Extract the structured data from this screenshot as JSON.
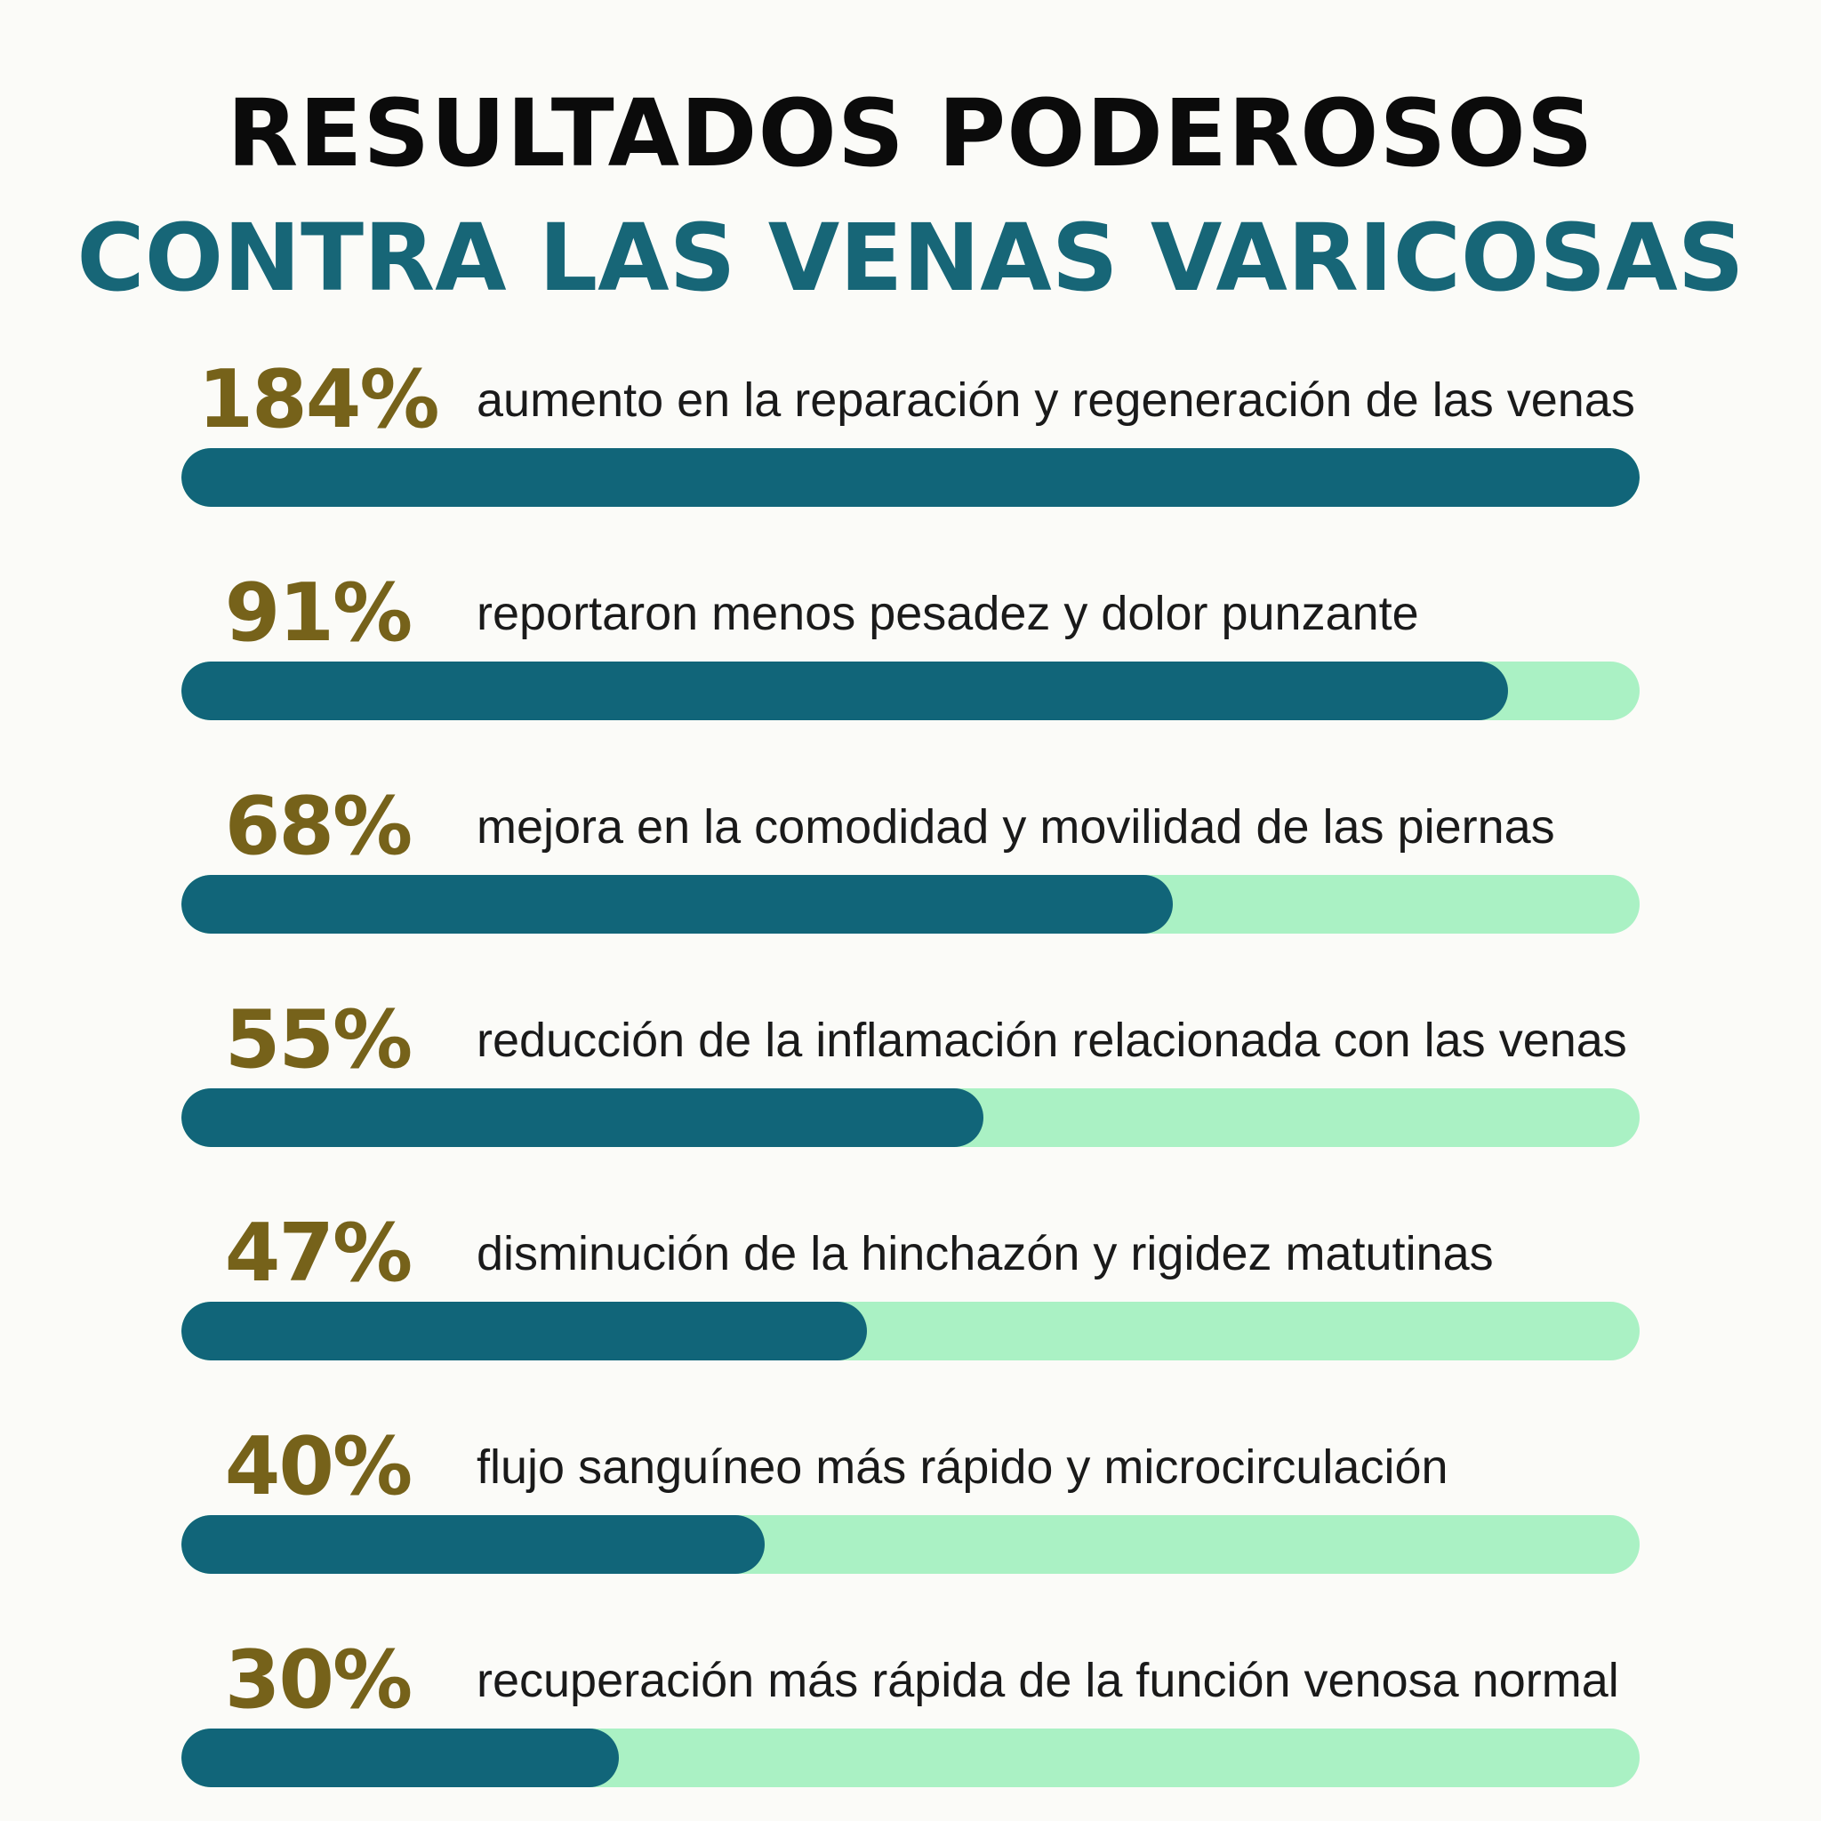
{
  "colors": {
    "background": "#fbfbf8",
    "title_dark": "#0b0b0b",
    "title_teal": "#176677",
    "percent_text": "#76621a",
    "bar_fill": "#116579",
    "bar_track": "#aaf1c4"
  },
  "chart_data": {
    "type": "bar",
    "orientation": "horizontal",
    "title_line1": "RESULTADOS PODEROSOS",
    "title_line2": "CONTRA LAS VENAS VARICOSAS",
    "items": [
      {
        "value_label": "184%",
        "value": 184,
        "fill_fraction": 1.0,
        "description": "aumento en la reparación y regeneración de las venas"
      },
      {
        "value_label": "91%",
        "value": 91,
        "fill_fraction": 0.91,
        "description": "reportaron menos pesadez y dolor punzante"
      },
      {
        "value_label": "68%",
        "value": 68,
        "fill_fraction": 0.68,
        "description": "mejora en la comodidad y movilidad de las piernas"
      },
      {
        "value_label": "55%",
        "value": 55,
        "fill_fraction": 0.55,
        "description": "reducción de la inflamación relacionada con las venas"
      },
      {
        "value_label": "47%",
        "value": 47,
        "fill_fraction": 0.47,
        "description": "disminución de la hinchazón y rigidez matutinas"
      },
      {
        "value_label": "40%",
        "value": 40,
        "fill_fraction": 0.4,
        "description": "flujo sanguíneo más rápido y microcirculación"
      },
      {
        "value_label": "30%",
        "value": 30,
        "fill_fraction": 0.3,
        "description": "recuperación más rápida de la función venosa normal"
      }
    ]
  }
}
